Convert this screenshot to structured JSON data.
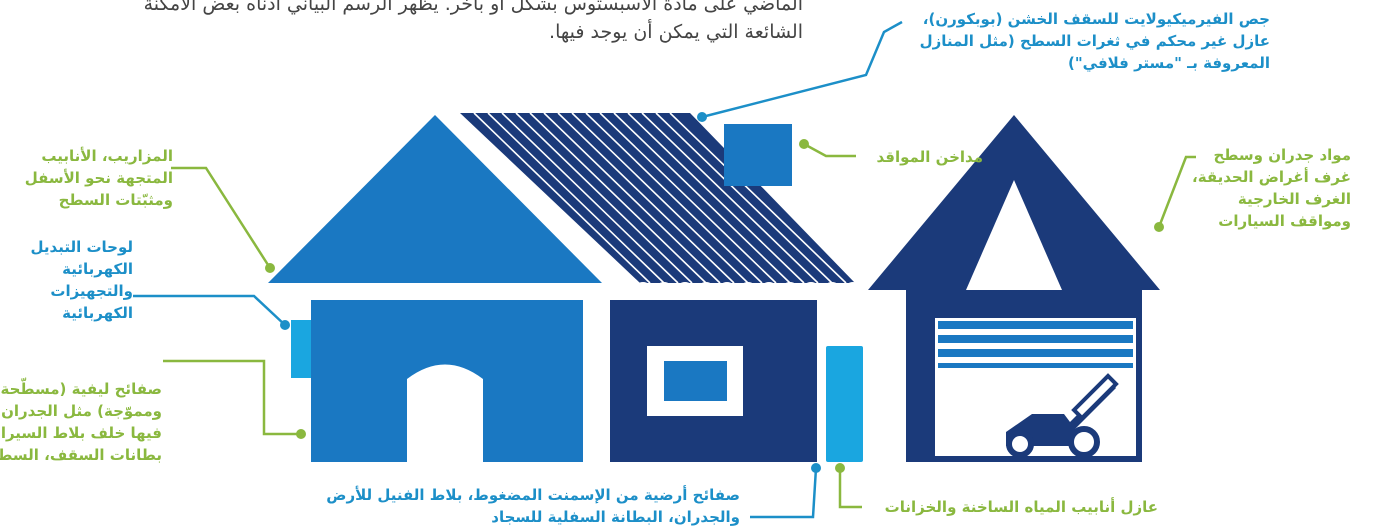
{
  "intro_text": [
    "الماضي على مادة الأسبستوس بشكل أو بآخر. يظهر الرسم البياني أدناه بعض الأمكنة",
    "الشائعة التي يمكن أن يوجد فيها."
  ],
  "labels": {
    "roof_insulation": [
      "جص الفيرميكيولايت للسقف الخشن (بوبكورن)،",
      "عازل غير محكم في ثغرات السطح (مثل المنازل",
      "المعروفة بـ \"مستر فلافي\")"
    ],
    "gutters": [
      "المزاريب، الأنابيب",
      "المتجهة نحو الأسفل",
      "ومثبّتات السطح"
    ],
    "switchboards": [
      "لوحات التبديل",
      "الكهربائية",
      "والتجهيزات",
      "الكهربائية"
    ],
    "fibre_sheets": [
      "صفائح ليفية (مسطّحة",
      "ومموّجة)  مثل الجدران (بما",
      "فيها خلف بلاط السيراميك)،",
      "بطانات السقف، السطوح"
    ],
    "flues": [
      "مداخن المواقد"
    ],
    "sheds": [
      "مواد جدران وسطح",
      "غرف أغراض الحديقة،",
      "الغرف الخارجية",
      "ومواقف السيارات"
    ],
    "floor_sheets": [
      "صفائح أرضية من الإسمنت المضغوط، بلاط الفنيل للأرض",
      "والجدران، البطانة السفلية للسجاد"
    ],
    "pipes": [
      "عازل أنابيب المياه الساخنة والخزانات"
    ]
  },
  "colors": {
    "navy": "#1b3a7a",
    "mid_blue": "#1a78c2",
    "light_blue": "#1aa6e0",
    "green": "#8ab83f",
    "blue_label": "#1c8fc8"
  }
}
